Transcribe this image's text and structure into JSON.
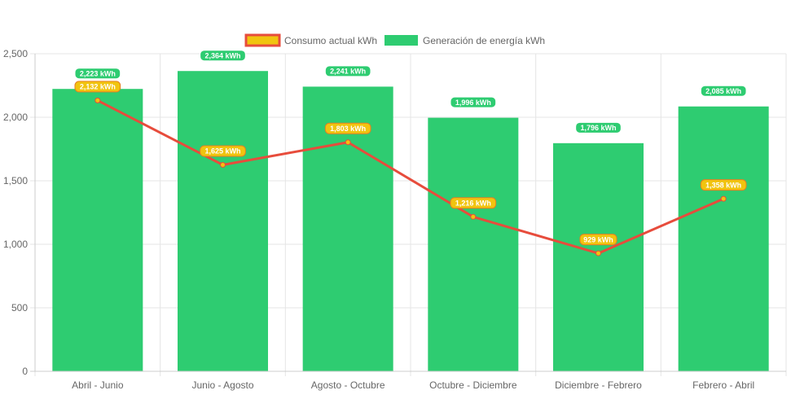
{
  "chart_data": {
    "type": "bar",
    "categories": [
      "Abril - Junio",
      "Junio - Agosto",
      "Agosto - Octubre",
      "Octubre - Diciembre",
      "Diciembre - Febrero",
      "Febrero - Abril"
    ],
    "series": [
      {
        "name": "Generación de energía kWh",
        "type": "bar",
        "values": [
          2223,
          2364,
          2241,
          1996,
          1796,
          2085
        ],
        "labels": [
          "2,223 kWh",
          "2,364 kWh",
          "2,241 kWh",
          "1,996 kWh",
          "1,796 kWh",
          "2,085 kWh"
        ],
        "color": "#2ecc71"
      },
      {
        "name": "Consumo actual kWh",
        "type": "line",
        "values": [
          2132,
          1625,
          1803,
          1216,
          929,
          1358
        ],
        "labels": [
          "2,132 kWh",
          "1,625 kWh",
          "1,803 kWh",
          "1,216 kWh",
          "929 kWh",
          "1,358 kWh"
        ],
        "color": "#e74c3c",
        "fill": "#f1c40f"
      }
    ],
    "ylim": [
      0,
      2500
    ],
    "yticks": [
      0,
      500,
      1000,
      1500,
      2000,
      2500
    ],
    "ytick_labels": [
      "0",
      "500",
      "1,000",
      "1,500",
      "2,000",
      "2,500"
    ],
    "grid": true,
    "legend_position": "top",
    "title": "",
    "xlabel": "",
    "ylabel": ""
  }
}
